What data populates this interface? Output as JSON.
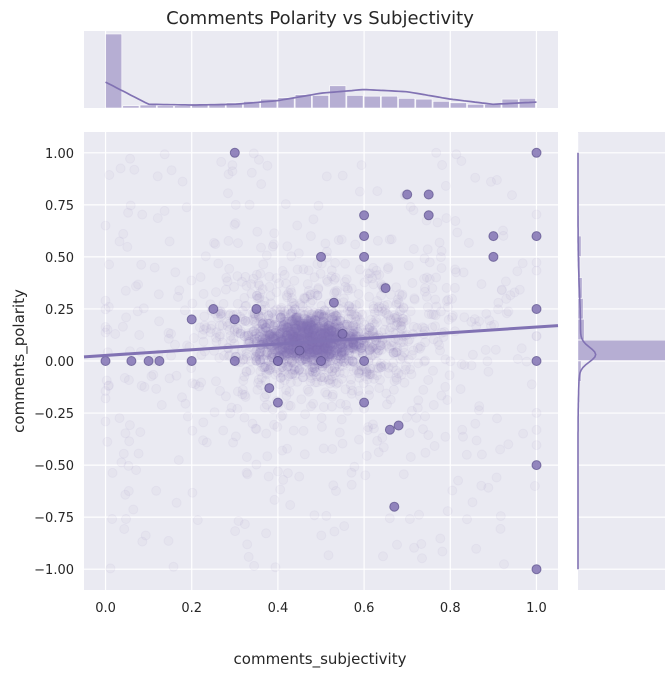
{
  "chart_data": {
    "type": "scatter",
    "title": "Comments Polarity vs Subjectivity",
    "xlabel": "comments_subjectivity",
    "ylabel": "comments_polarity",
    "xlim": [
      -0.05,
      1.05
    ],
    "ylim": [
      -1.1,
      1.1
    ],
    "x_ticks": [
      "0.0",
      "0.2",
      "0.4",
      "0.6",
      "0.8",
      "1.0"
    ],
    "x_tick_values": [
      0,
      0.2,
      0.4,
      0.6,
      0.8,
      1.0
    ],
    "y_ticks": [
      "1.00",
      "0.75",
      "0.50",
      "0.25",
      "0.00",
      "−0.25",
      "−0.50",
      "−0.75",
      "−1.00"
    ],
    "y_tick_values": [
      1.0,
      0.75,
      0.5,
      0.25,
      0,
      -0.25,
      -0.5,
      -0.75,
      -1.0
    ],
    "grid": true,
    "regression_line": {
      "x": [
        -0.05,
        1.05
      ],
      "y": [
        0.02,
        0.17
      ]
    },
    "dense_points": [
      [
        0.0,
        0.0
      ],
      [
        0.06,
        0.0
      ],
      [
        0.1,
        0.0
      ],
      [
        0.125,
        0.0
      ],
      [
        0.2,
        0.0
      ],
      [
        0.2,
        0.2
      ],
      [
        0.25,
        0.25
      ],
      [
        0.3,
        0.0
      ],
      [
        0.3,
        0.2
      ],
      [
        0.3,
        1.0
      ],
      [
        0.35,
        0.25
      ],
      [
        0.38,
        -0.13
      ],
      [
        0.4,
        -0.2
      ],
      [
        0.4,
        0.0
      ],
      [
        0.45,
        0.05
      ],
      [
        0.5,
        0.0
      ],
      [
        0.5,
        0.5
      ],
      [
        0.53,
        0.28
      ],
      [
        0.55,
        0.13
      ],
      [
        0.6,
        0.0
      ],
      [
        0.6,
        0.5
      ],
      [
        0.6,
        0.6
      ],
      [
        0.6,
        0.7
      ],
      [
        0.65,
        0.35
      ],
      [
        0.66,
        -0.33
      ],
      [
        0.68,
        -0.31
      ],
      [
        0.7,
        0.8
      ],
      [
        0.75,
        0.8
      ],
      [
        0.75,
        0.7
      ],
      [
        0.9,
        0.6
      ],
      [
        0.9,
        0.5
      ],
      [
        1.0,
        1.0
      ],
      [
        1.0,
        0.6
      ],
      [
        1.0,
        0.25
      ],
      [
        1.0,
        0.0
      ],
      [
        1.0,
        -0.5
      ],
      [
        1.0,
        -1.0
      ],
      [
        0.67,
        -0.7
      ],
      [
        0.4,
        0.0
      ],
      [
        0.6,
        -0.2
      ]
    ],
    "x_hist": {
      "bins": [
        0.0,
        0.04,
        0.08,
        0.12,
        0.16,
        0.2,
        0.24,
        0.28,
        0.32,
        0.36,
        0.4,
        0.44,
        0.48,
        0.52,
        0.56,
        0.6,
        0.64,
        0.68,
        0.72,
        0.76,
        0.8,
        0.84,
        0.88,
        0.92,
        0.96
      ],
      "counts": [
        1.0,
        0.03,
        0.04,
        0.03,
        0.03,
        0.04,
        0.05,
        0.07,
        0.09,
        0.12,
        0.14,
        0.18,
        0.17,
        0.3,
        0.17,
        0.16,
        0.16,
        0.13,
        0.12,
        0.09,
        0.07,
        0.05,
        0.05,
        0.12,
        0.13
      ],
      "kde_y": [
        0.35,
        0.05,
        0.04,
        0.05,
        0.1,
        0.2,
        0.25,
        0.22,
        0.12,
        0.05,
        0.08
      ]
    },
    "y_hist": {
      "bins": [
        -1.0,
        -0.9,
        -0.8,
        -0.7,
        -0.6,
        -0.5,
        -0.4,
        -0.3,
        -0.2,
        -0.1,
        0.0,
        0.1,
        0.2,
        0.3,
        0.4,
        0.5,
        0.6,
        0.7,
        0.8,
        0.9,
        1.0
      ],
      "counts": [
        0.005,
        0.003,
        0.004,
        0.004,
        0.006,
        0.008,
        0.008,
        0.01,
        0.015,
        0.03,
        1.0,
        0.06,
        0.05,
        0.04,
        0.02,
        0.03,
        0.01,
        0.008,
        0.005,
        0.004,
        0.004
      ]
    },
    "color": "#8172b3"
  }
}
